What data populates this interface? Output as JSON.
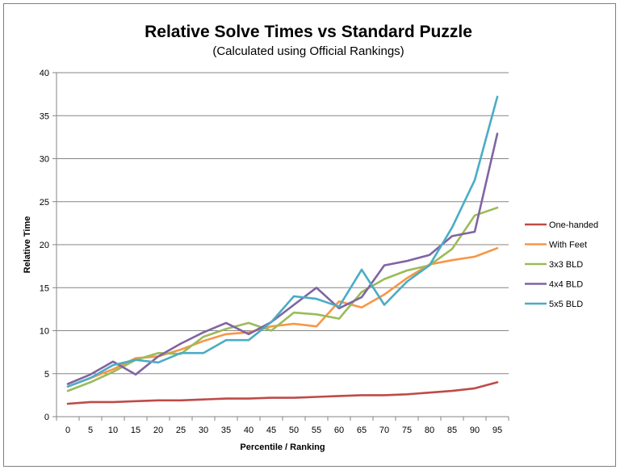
{
  "chart_data": {
    "type": "line",
    "title": "Relative Solve Times vs Standard Puzzle",
    "subtitle": "(Calculated using Official Rankings)",
    "xlabel": "Percentile / Ranking",
    "ylabel": "Relative Time",
    "x": [
      0,
      5,
      10,
      15,
      20,
      25,
      30,
      35,
      40,
      45,
      50,
      55,
      60,
      65,
      70,
      75,
      80,
      85,
      90,
      95
    ],
    "ylim": [
      0,
      40
    ],
    "yticks": [
      0,
      5,
      10,
      15,
      20,
      25,
      30,
      35,
      40
    ],
    "grid": "horizontal major gridlines",
    "legend_position": "right",
    "series": [
      {
        "name": "One-handed",
        "color": "#be4b48",
        "values": [
          1.5,
          1.7,
          1.7,
          1.8,
          1.9,
          1.9,
          2.0,
          2.1,
          2.1,
          2.2,
          2.2,
          2.3,
          2.4,
          2.5,
          2.5,
          2.6,
          2.8,
          3.0,
          3.3,
          4.0
        ]
      },
      {
        "name": "With Feet",
        "color": "#f79646",
        "values": [
          3.5,
          4.5,
          5.5,
          6.8,
          7.0,
          7.8,
          8.8,
          9.6,
          9.8,
          10.5,
          10.8,
          10.5,
          13.4,
          12.7,
          14.2,
          16.1,
          17.7,
          18.2,
          18.6,
          19.6
        ]
      },
      {
        "name": "3x3 BLD",
        "color": "#9bbb59",
        "values": [
          3.0,
          4.0,
          5.2,
          6.6,
          7.4,
          7.3,
          9.3,
          10.2,
          10.9,
          10.0,
          12.1,
          11.9,
          11.4,
          14.5,
          16.0,
          17.0,
          17.6,
          19.5,
          23.4,
          24.3
        ]
      },
      {
        "name": "4x4 BLD",
        "color": "#8064a2",
        "values": [
          3.8,
          4.9,
          6.4,
          4.9,
          7.0,
          8.5,
          9.8,
          10.9,
          9.6,
          11.0,
          13.0,
          15.0,
          12.6,
          13.9,
          17.6,
          18.1,
          18.8,
          21.0,
          21.5,
          32.9
        ]
      },
      {
        "name": "5x5 BLD",
        "color": "#4bacc6",
        "values": [
          3.5,
          4.5,
          6.0,
          6.6,
          6.3,
          7.4,
          7.4,
          8.9,
          8.9,
          11.0,
          14.0,
          13.7,
          12.8,
          17.1,
          13.0,
          15.7,
          17.6,
          22.0,
          27.5,
          37.2
        ]
      }
    ]
  }
}
